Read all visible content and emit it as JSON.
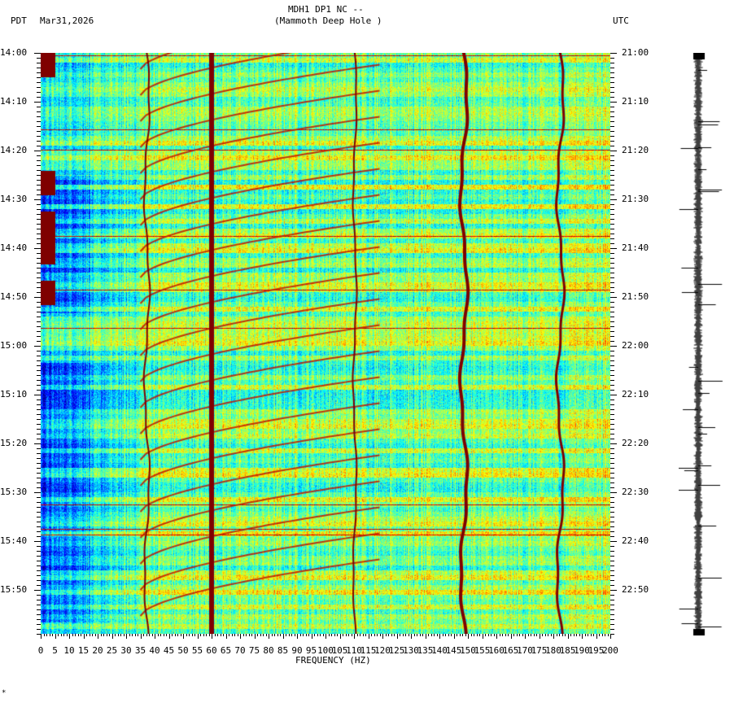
{
  "header": {
    "title_line1": "MDH1 DP1 NC --",
    "title_line2": "(Mammoth Deep Hole )",
    "left_tz": "PDT",
    "date": "Mar31,2026",
    "right_tz": "UTC"
  },
  "footer": {
    "corner_mark": "*"
  },
  "chart_data": {
    "type": "heatmap",
    "title": "MDH1 DP1 NC -- (Mammoth Deep Hole )",
    "subtitle": "Mar31,2026",
    "xlabel": "FREQUENCY (HZ)",
    "ylabel_left": "PDT",
    "ylabel_right": "UTC",
    "x_range": [
      0,
      200
    ],
    "x_ticks": [
      0,
      5,
      10,
      15,
      20,
      25,
      30,
      35,
      40,
      45,
      50,
      55,
      60,
      65,
      70,
      75,
      80,
      85,
      90,
      95,
      100,
      105,
      110,
      115,
      120,
      125,
      130,
      135,
      140,
      145,
      150,
      155,
      160,
      165,
      170,
      175,
      180,
      185,
      190,
      195,
      200
    ],
    "y_ticks_left": [
      "14:00",
      "14:10",
      "14:20",
      "14:30",
      "14:40",
      "14:50",
      "15:00",
      "15:10",
      "15:20",
      "15:30",
      "15:40",
      "15:50"
    ],
    "y_ticks_right": [
      "21:00",
      "21:10",
      "21:20",
      "21:30",
      "21:40",
      "21:50",
      "22:00",
      "22:10",
      "22:20",
      "22:30",
      "22:40",
      "22:50"
    ],
    "time_span_minutes": 120,
    "colormap": [
      "#00007f",
      "#0000ff",
      "#007fff",
      "#00ffff",
      "#7fff7f",
      "#ffff00",
      "#ff7f00",
      "#ff0000",
      "#7f0000"
    ],
    "features": [
      {
        "type": "persistent_line",
        "freq_hz": 60,
        "color": "#7f0000",
        "note": "strong power-line band near 59-60 Hz"
      },
      {
        "type": "wandering_line",
        "freq_hz_approx": 37,
        "color": "#7f0000"
      },
      {
        "type": "wandering_line",
        "freq_hz_approx": 110,
        "color": "#7f0000"
      },
      {
        "type": "wandering_line",
        "freq_hz_approx": 148,
        "color": "#7f0000"
      },
      {
        "type": "wandering_line",
        "freq_hz_approx": 182,
        "color": "#7f0000"
      },
      {
        "type": "diagonal_sweeps",
        "freq_range_hz": [
          35,
          130
        ],
        "color": "#cc2000"
      },
      {
        "type": "low_freq_blue_region",
        "freq_range_hz": [
          0,
          35
        ],
        "time_range": [
          "14:00",
          "15:50"
        ]
      }
    ],
    "grid": false,
    "legend": "none"
  },
  "seismogram": {
    "label": "",
    "trace_color": "#000000",
    "minute_markers": true
  }
}
